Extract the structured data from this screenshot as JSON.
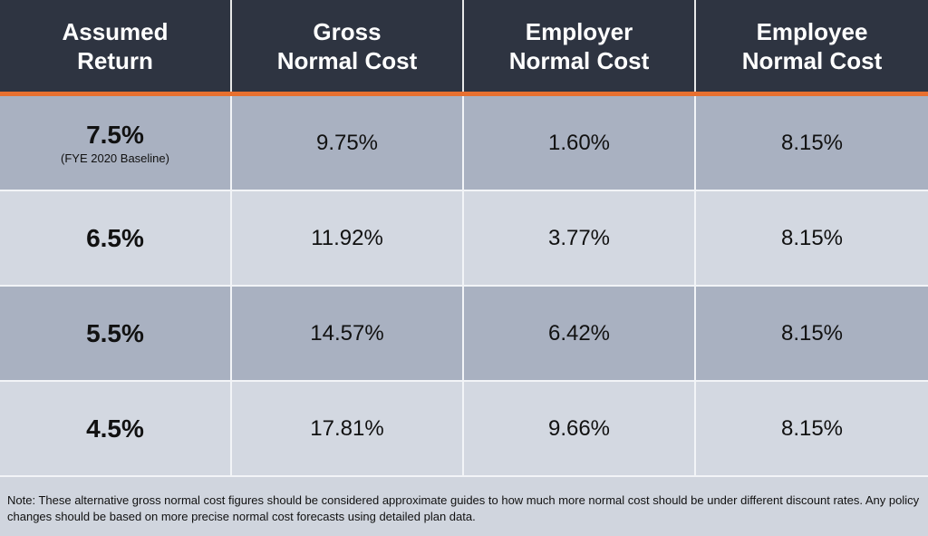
{
  "colors": {
    "header_bg": "#2e3441",
    "accent": "#e8702f",
    "row_dark": "#a9b1c1",
    "row_light": "#d3d8e1"
  },
  "chart_data": {
    "type": "table",
    "columns": [
      "Assumed\nReturn",
      "Gross\nNormal Cost",
      "Employer\nNormal Cost",
      "Employee\nNormal Cost"
    ],
    "rows": [
      {
        "return": "7.5%",
        "return_note": "(FYE 2020 Baseline)",
        "gross": "9.75%",
        "employer": "1.60%",
        "employee": "8.15%"
      },
      {
        "return": "6.5%",
        "return_note": "",
        "gross": "11.92%",
        "employer": "3.77%",
        "employee": "8.15%"
      },
      {
        "return": "5.5%",
        "return_note": "",
        "gross": "14.57%",
        "employer": "6.42%",
        "employee": "8.15%"
      },
      {
        "return": "4.5%",
        "return_note": "",
        "gross": "17.81%",
        "employer": "9.66%",
        "employee": "8.15%"
      }
    ]
  },
  "note": "Note: These alternative gross normal cost figures should be considered approximate guides to how much more normal cost should be under different discount rates. Any policy changes should be based on more precise normal cost forecasts using detailed plan data."
}
